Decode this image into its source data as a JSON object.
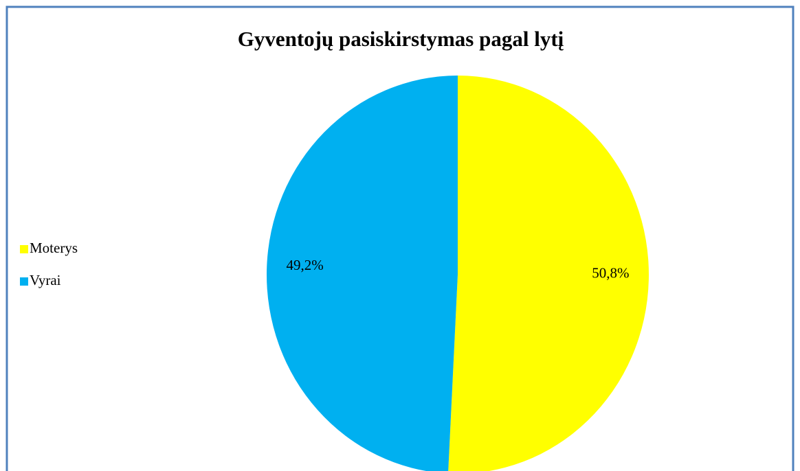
{
  "chart_data": {
    "type": "pie",
    "title": "Gyventojų pasiskirstymas pagal lytį",
    "categories": [
      "Moterys",
      "Vyrai"
    ],
    "values": [
      50.8,
      49.2
    ],
    "value_labels": [
      "50,8%",
      "49,2%"
    ],
    "colors": [
      "#ffff00",
      "#00b0f0"
    ],
    "legend": "left"
  }
}
